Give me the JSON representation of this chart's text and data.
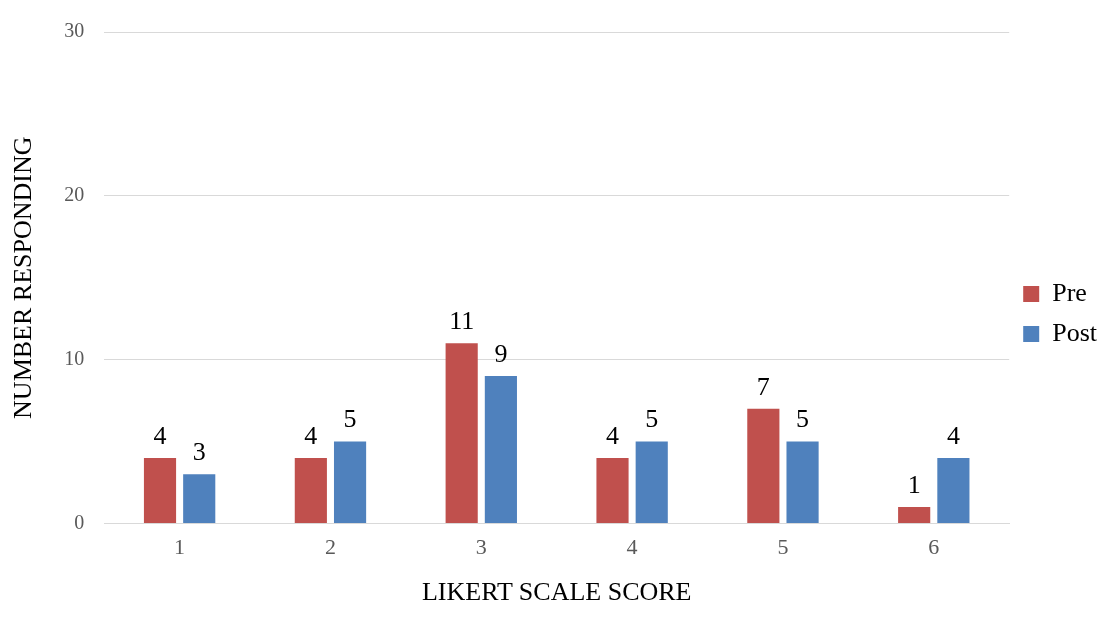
{
  "chart_data": {
    "type": "bar",
    "xlabel": "LIKERT SCALE SCORE",
    "ylabel": "NUMBER RESPONDING",
    "categories": [
      "1",
      "2",
      "3",
      "4",
      "5",
      "6"
    ],
    "series": [
      {
        "name": "Pre",
        "color": "#c0504d",
        "values": [
          4,
          4,
          11,
          4,
          7,
          1
        ]
      },
      {
        "name": "Post",
        "color": "#4f81bd",
        "values": [
          3,
          5,
          9,
          5,
          5,
          4
        ]
      }
    ],
    "ylim": [
      0,
      30
    ],
    "yticks": [
      0,
      10,
      20,
      30
    ],
    "grid": "y",
    "legend": "right",
    "data_labels": true
  }
}
